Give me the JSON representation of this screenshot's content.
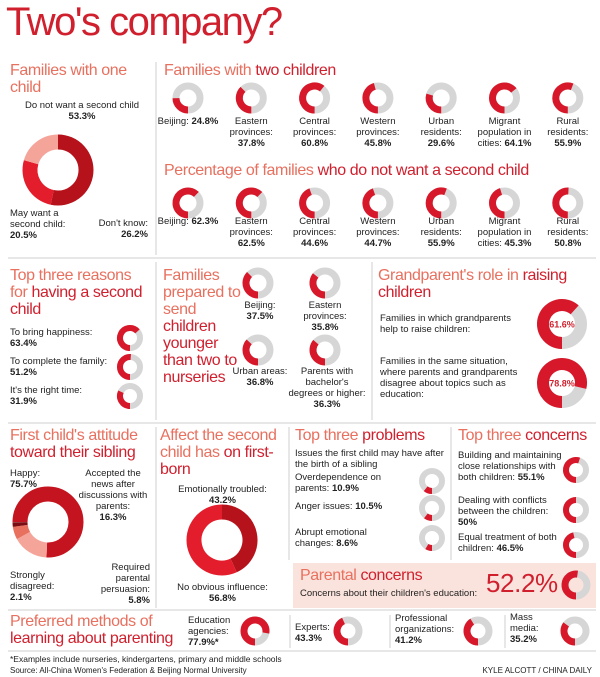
{
  "title": "Two's company?",
  "one_child": {
    "heading": [
      {
        "text": "Families with one child",
        "color": "#e8705f"
      }
    ],
    "segments": [
      {
        "label": "Do not want a second child",
        "value": 53.3,
        "value_label": "53.3%",
        "color": "#b5121b"
      },
      {
        "label": "Don't know:",
        "value": 26.2,
        "value_label": "26.2%",
        "color": "#e31d2b"
      },
      {
        "label": "May want a second child:",
        "value": 20.5,
        "value_label": "20.5%",
        "color": "#f5a49a"
      }
    ]
  },
  "two_children": {
    "heading": [
      {
        "text": "Families with",
        "color": "#e8705f"
      },
      {
        "text": "two children",
        "color": "#d0202e"
      }
    ],
    "color": "#d7182a",
    "items": [
      {
        "label": "Beijing:",
        "value": 24.8,
        "value_label": "24.8%"
      },
      {
        "label": "Eastern provinces:",
        "value": 37.8,
        "value_label": "37.8%"
      },
      {
        "label": "Central provinces:",
        "value": 60.8,
        "value_label": "60.8%"
      },
      {
        "label": "Western provinces:",
        "value": 45.8,
        "value_label": "45.8%"
      },
      {
        "label": "Urban residents:",
        "value": 29.6,
        "value_label": "29.6%"
      },
      {
        "label": "Migrant population in cities:",
        "value": 64.1,
        "value_label": "64.1%"
      },
      {
        "label": "Rural residents:",
        "value": 55.9,
        "value_label": "55.9%"
      }
    ]
  },
  "no_second_child": {
    "heading": [
      {
        "text": "Percentage of families",
        "color": "#e8705f"
      },
      {
        "text": "who do not want a second child",
        "color": "#d0202e"
      }
    ],
    "color": "#d7182a",
    "items": [
      {
        "label": "Beijing:",
        "value": 62.3,
        "value_label": "62.3%"
      },
      {
        "label": "Eastern provinces:",
        "value": 62.5,
        "value_label": "62.5%"
      },
      {
        "label": "Central provinces:",
        "value": 44.6,
        "value_label": "44.6%"
      },
      {
        "label": "Western provinces:",
        "value": 44.7,
        "value_label": "44.7%"
      },
      {
        "label": "Urban residents:",
        "value": 55.9,
        "value_label": "55.9%"
      },
      {
        "label": "Migrant population in cities:",
        "value": 45.3,
        "value_label": "45.3%"
      },
      {
        "label": "Rural residents:",
        "value": 50.8,
        "value_label": "50.8%"
      }
    ]
  },
  "reasons": {
    "heading": [
      {
        "text": "Top three reasons for",
        "color": "#e8705f"
      },
      {
        "text": "having a second child",
        "color": "#d0202e"
      }
    ],
    "color": "#d7182a",
    "items": [
      {
        "label": "To bring happiness:",
        "value": 63.4,
        "value_label": "63.4%"
      },
      {
        "label": "To complete the family:",
        "value": 51.2,
        "value_label": "51.2%"
      },
      {
        "label": "It's the right time:",
        "value": 31.9,
        "value_label": "31.9%"
      }
    ]
  },
  "nurseries": {
    "heading": [
      {
        "text": "Families prepared to send",
        "color": "#e8705f"
      },
      {
        "text": "children younger than two to nurseries",
        "color": "#d0202e"
      }
    ],
    "color": "#d7182a",
    "items": [
      {
        "label": "Beijing:",
        "value": 37.5,
        "value_label": "37.5%"
      },
      {
        "label": "Eastern provinces:",
        "value": 35.8,
        "value_label": "35.8%"
      },
      {
        "label": "Urban areas:",
        "value": 36.8,
        "value_label": "36.8%"
      },
      {
        "label": "Parents with bachelor's degrees or higher:",
        "value": 36.3,
        "value_label": "36.3%"
      }
    ]
  },
  "grandparents": {
    "heading": [
      {
        "text": "Grandparent's role in",
        "color": "#e8705f"
      },
      {
        "text": "raising children",
        "color": "#d0202e"
      }
    ],
    "color": "#d7182a",
    "items": [
      {
        "label": "Families in which grandparents help to raise children:",
        "value": 61.6,
        "value_label": "61.6%"
      },
      {
        "label": "Families in the same situation, where parents and grandparents disagree about topics such as education:",
        "value": 78.8,
        "value_label": "78.8%"
      }
    ]
  },
  "attitude": {
    "heading": [
      {
        "text": "First child's attitude",
        "color": "#e8705f"
      },
      {
        "text": "toward their sibling",
        "color": "#d0202e"
      }
    ],
    "segments": [
      {
        "label": "Happy:",
        "value": 75.7,
        "value_label": "75.7%",
        "color": "#c4141f"
      },
      {
        "label": "Accepted the news after discussions with parents:",
        "value": 16.3,
        "value_label": "16.3%",
        "color": "#f5a49a"
      },
      {
        "label": "Required parental persuasion:",
        "value": 5.8,
        "value_label": "5.8%",
        "color": "#e8705f"
      },
      {
        "label": "Strongly disagreed:",
        "value": 2.1,
        "value_label": "2.1%",
        "color": "#7a0c12"
      }
    ]
  },
  "affect": {
    "heading": [
      {
        "text": "Affect the second child has",
        "color": "#e8705f"
      },
      {
        "text": "on first-born",
        "color": "#d0202e"
      }
    ],
    "segments": [
      {
        "label": "Emotionally troubled:",
        "value": 43.2,
        "value_label": "43.2%",
        "color": "#b5121b"
      },
      {
        "label": "No obvious influence:",
        "value": 56.8,
        "value_label": "56.8%",
        "color": "#e31d2b"
      }
    ]
  },
  "problems": {
    "heading": [
      {
        "text": "Top three",
        "color": "#e8705f"
      },
      {
        "text": "problems",
        "color": "#d0202e"
      }
    ],
    "subtitle": "Issues the first child may have after the birth of a sibling",
    "color": "#d7182a",
    "items": [
      {
        "label": "Overdependence on parents:",
        "value": 10.9,
        "value_label": "10.9%"
      },
      {
        "label": "Anger issues:",
        "value": 10.5,
        "value_label": "10.5%"
      },
      {
        "label": "Abrupt emotional changes:",
        "value": 8.6,
        "value_label": "8.6%"
      }
    ]
  },
  "concerns": {
    "heading": [
      {
        "text": "Top three",
        "color": "#e8705f"
      },
      {
        "text": "concerns",
        "color": "#d0202e"
      }
    ],
    "color": "#d7182a",
    "items": [
      {
        "label": "Building and maintaining close relationships with both children:",
        "value": 55.1,
        "value_label": "55.1%"
      },
      {
        "label": "Dealing with conflicts between the children:",
        "value": 50,
        "value_label": "50%"
      },
      {
        "label": "Equal treatment of both children:",
        "value": 46.5,
        "value_label": "46.5%"
      }
    ]
  },
  "parental": {
    "heading": [
      {
        "text": "Parental",
        "color": "#e8705f"
      },
      {
        "text": "concerns",
        "color": "#d0202e"
      }
    ],
    "color": "#d7182a",
    "label": "Concerns about their children's education:",
    "value": 52.2,
    "value_label": "52.2%"
  },
  "methods": {
    "heading": [
      {
        "text": "Preferred methods of",
        "color": "#e8705f"
      },
      {
        "text": "learning about parenting",
        "color": "#d0202e"
      }
    ],
    "color": "#d7182a",
    "items": [
      {
        "label": "Education agencies:",
        "value": 77.9,
        "value_label": "77.9%*"
      },
      {
        "label": "Experts:",
        "value": 43.3,
        "value_label": "43.3%"
      },
      {
        "label": "Professional organizations:",
        "value": 41.2,
        "value_label": "41.2%"
      },
      {
        "label": "Mass media:",
        "value": 35.2,
        "value_label": "35.2%"
      }
    ]
  },
  "footnote": "*Examples include nurseries, kindergartens, primary and middle schools",
  "source": "Source: All-China Women's Federation & Beijing Normal University",
  "credit": "KYLE ALCOTT / CHINA DAILY"
}
